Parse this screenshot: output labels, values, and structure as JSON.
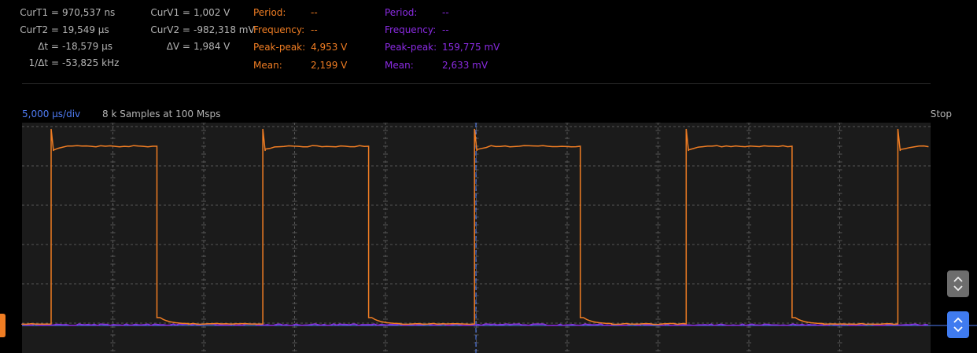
{
  "cursors": {
    "curt1": {
      "label": "CurT1 =",
      "value": "970,537 ns"
    },
    "curt2": {
      "label": "CurT2 =",
      "value": "19,549 µs"
    },
    "dt": {
      "label": "Δt =",
      "value": "-18,579 µs"
    },
    "inv_dt": {
      "label": "1/Δt =",
      "value": "-53,825 kHz"
    },
    "curv1": {
      "label": "CurV1 =",
      "value": "1,002 V"
    },
    "curv2": {
      "label": "CurV2 =",
      "value": "-982,318 mV"
    },
    "dv": {
      "label": "ΔV =",
      "value": "1,984 V"
    }
  },
  "ch1_measure": {
    "color": "#f07d23",
    "period_label": "Period:",
    "period": "--",
    "frequency_label": "Frequency:",
    "frequency": "--",
    "pkpk_label": "Peak-peak:",
    "pkpk": "4,953 V",
    "mean_label": "Mean:",
    "mean": "2,199 V"
  },
  "ch2_measure": {
    "color": "#8a2be2",
    "period_label": "Period:",
    "period": "--",
    "frequency_label": "Frequency:",
    "frequency": "--",
    "pkpk_label": "Peak-peak:",
    "pkpk": "159,775 mV",
    "mean_label": "Mean:",
    "mean": "2,633 mV"
  },
  "timebase": "5,000 µs/div",
  "acquisition": "8 k Samples at 100 Msps",
  "run_state": "Stop",
  "colors": {
    "ch1": "#f07d23",
    "ch2": "#8a2be2",
    "cursor": "#4f7cf5",
    "grid": "#555555",
    "plot_bg": "#1b1b1b"
  },
  "icons": {
    "ch1_marker": "orange-ground-marker",
    "ch1_scroll": "chevron-up-down-icon",
    "ch2_scroll": "chevron-up-down-icon"
  },
  "waveform": {
    "timebase_divs": 10,
    "ch1_period_divs": 2.33,
    "ch1_duty": 0.5,
    "ch1_first_rising_div": 0.32
  }
}
